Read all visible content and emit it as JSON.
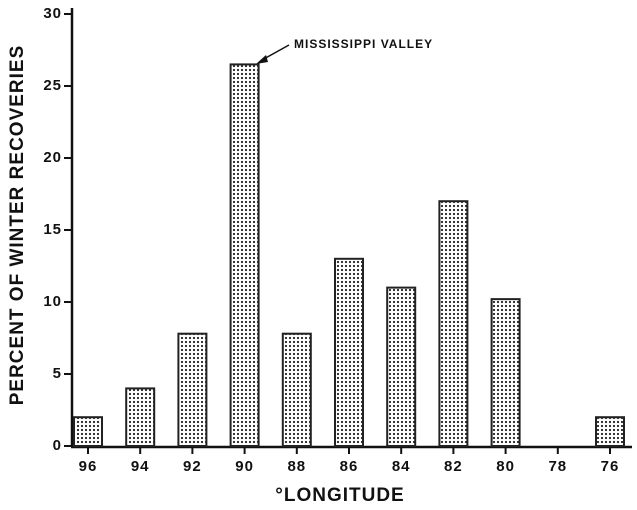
{
  "chart_data": {
    "type": "bar",
    "x_label": "°LONGITUDE",
    "y_label": "PERCENT OF WINTER RECOVERIES",
    "annotation": "MISSISSIPPI VALLEY",
    "categories": [
      "96",
      "94",
      "92",
      "90",
      "88",
      "86",
      "84",
      "82",
      "80",
      "78",
      "76"
    ],
    "values": [
      2,
      4,
      7.8,
      26.5,
      7.8,
      13,
      11,
      17,
      10.2,
      0,
      2
    ],
    "color": "#222222",
    "ylim": [
      0,
      30
    ],
    "yticks": [
      0,
      5,
      10,
      15,
      20,
      25,
      30
    ],
    "grid": false
  }
}
